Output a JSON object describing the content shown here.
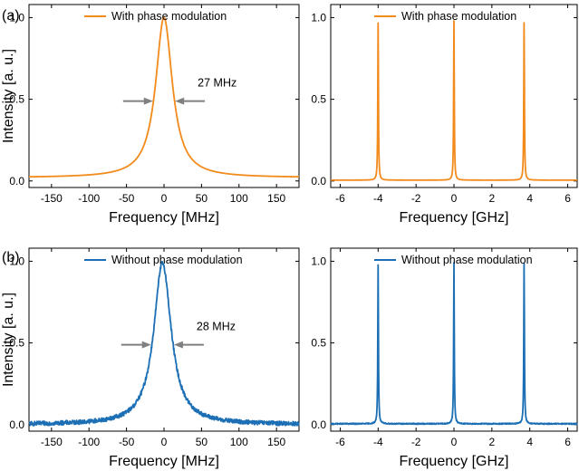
{
  "figure": {
    "panel_labels": [
      "(a)",
      "(b)"
    ],
    "colors": {
      "with_modulation": "#F28A1C",
      "without_modulation": "#1C6FB4",
      "arrow": "#808080"
    }
  },
  "chart_data": [
    {
      "id": "a-left",
      "type": "line",
      "title": "",
      "xlabel": "Frequency [MHz]",
      "ylabel": "Intensity [a. u.]",
      "xlim": [
        -180,
        180
      ],
      "ylim": [
        -0.04,
        1.08
      ],
      "xticks": [
        -150,
        -100,
        -50,
        0,
        50,
        100,
        150
      ],
      "xtick_labels": [
        "-150",
        "-100",
        "-50",
        "0",
        "50",
        "100",
        "150"
      ],
      "yticks": [
        0.0,
        0.5,
        1.0
      ],
      "ytick_labels": [
        "0.0",
        "0.5",
        "1.0"
      ],
      "legend": {
        "position": "top-center",
        "entries": [
          "With phase modulation"
        ]
      },
      "series": [
        {
          "name": "With phase modulation",
          "color": "#F28A1C",
          "shape": "lorentzian",
          "center": 0,
          "fwhm": 27,
          "peak": 1.0,
          "baseline": 0.02,
          "noise": 0.0
        }
      ],
      "annotation": {
        "text": "27 MHz",
        "fwhm_mhz": 27,
        "arrow_level": 0.5
      }
    },
    {
      "id": "a-right",
      "type": "line",
      "title": "",
      "xlabel": "Frequency [GHz]",
      "ylabel": "",
      "xlim": [
        -6.5,
        6.5
      ],
      "ylim": [
        -0.04,
        1.08
      ],
      "xticks": [
        -6,
        -4,
        -2,
        0,
        2,
        4,
        6
      ],
      "xtick_labels": [
        "-6",
        "-4",
        "-2",
        "0",
        "2",
        "4",
        "6"
      ],
      "yticks": [
        0.0,
        0.5,
        1.0
      ],
      "ytick_labels": [
        "0.0",
        "0.5",
        "1.0"
      ],
      "legend": {
        "position": "top-center",
        "entries": [
          "With phase modulation"
        ]
      },
      "series": [
        {
          "name": "With phase modulation",
          "color": "#F28A1C",
          "shape": "peaks",
          "peaks": [
            {
              "x": -4.0,
              "y": 0.97
            },
            {
              "x": 0.0,
              "y": 0.98
            },
            {
              "x": 3.7,
              "y": 0.98
            }
          ],
          "width": 0.04,
          "baseline": 0.005,
          "noise": 0.0
        }
      ]
    },
    {
      "id": "b-left",
      "type": "line",
      "title": "",
      "xlabel": "Frequency [MHz]",
      "ylabel": "Intensity [a. u.]",
      "xlim": [
        -180,
        180
      ],
      "ylim": [
        -0.04,
        1.08
      ],
      "xticks": [
        -150,
        -100,
        -50,
        0,
        50,
        100,
        150
      ],
      "xtick_labels": [
        "-150",
        "-100",
        "-50",
        "0",
        "50",
        "100",
        "150"
      ],
      "yticks": [
        0.0,
        0.5,
        1.0
      ],
      "ytick_labels": [
        "0.0",
        "0.5",
        "1.0"
      ],
      "legend": {
        "position": "top-center",
        "entries": [
          "Without phase modulation"
        ]
      },
      "series": [
        {
          "name": "Without phase modulation",
          "color": "#1C6FB4",
          "shape": "lorentzian",
          "center": -2,
          "fwhm": 28,
          "peak": 0.99,
          "baseline": 0.0,
          "noise": 0.012
        }
      ],
      "annotation": {
        "text": "28 MHz",
        "fwhm_mhz": 28,
        "arrow_level": 0.5
      }
    },
    {
      "id": "b-right",
      "type": "line",
      "title": "",
      "xlabel": "Frequency [GHz]",
      "ylabel": "",
      "xlim": [
        -6.5,
        6.5
      ],
      "ylim": [
        -0.04,
        1.08
      ],
      "xticks": [
        -6,
        -4,
        -2,
        0,
        2,
        4,
        6
      ],
      "xtick_labels": [
        "-6",
        "-4",
        "-2",
        "0",
        "2",
        "4",
        "6"
      ],
      "yticks": [
        0.0,
        0.5,
        1.0
      ],
      "ytick_labels": [
        "0.0",
        "0.5",
        "1.0"
      ],
      "legend": {
        "position": "top-center",
        "entries": [
          "Without phase modulation"
        ]
      },
      "series": [
        {
          "name": "Without phase modulation",
          "color": "#1C6FB4",
          "shape": "peaks",
          "peaks": [
            {
              "x": -4.0,
              "y": 0.98
            },
            {
              "x": 0.0,
              "y": 0.99
            },
            {
              "x": 3.7,
              "y": 1.0
            }
          ],
          "width": 0.04,
          "baseline": 0.005,
          "noise": 0.003
        }
      ]
    }
  ]
}
